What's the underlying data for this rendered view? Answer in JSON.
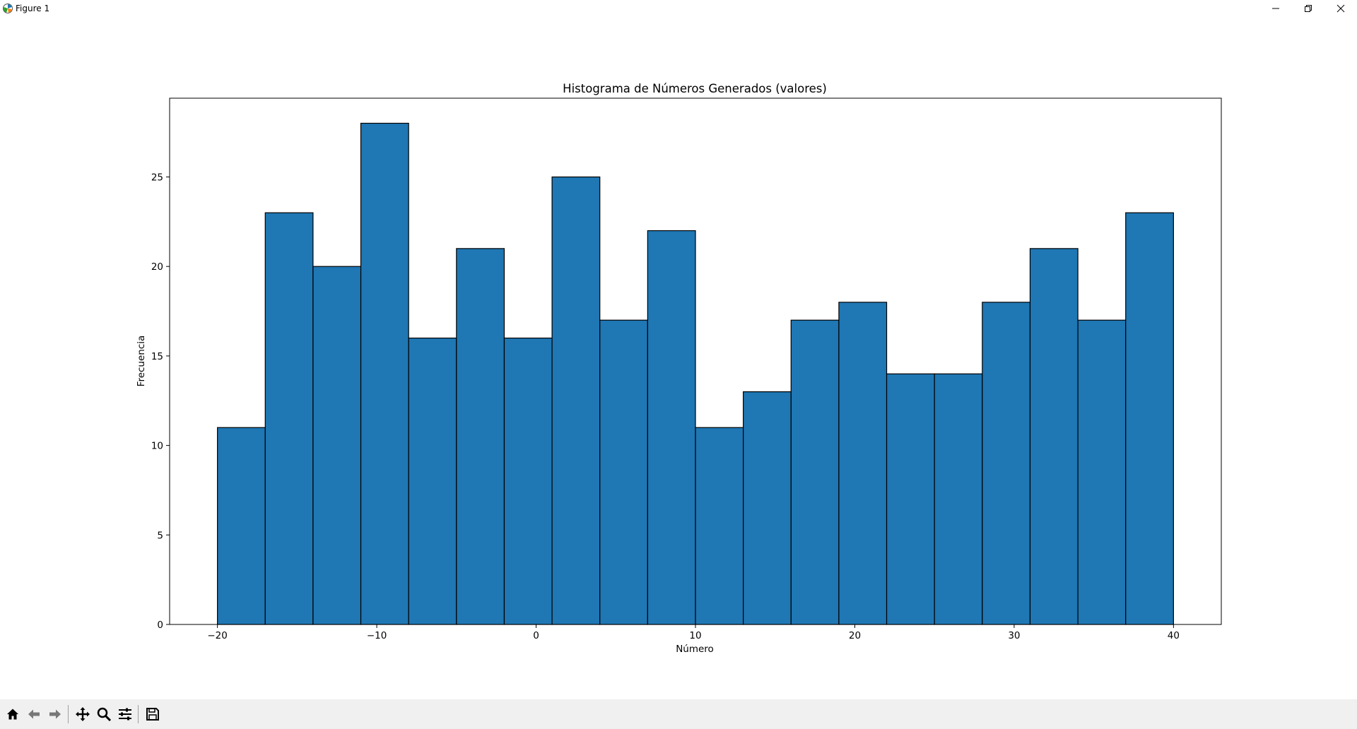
{
  "window": {
    "title": "Figure 1",
    "icons": [
      "matplotlib-icon",
      "minimize-icon",
      "restore-icon",
      "close-icon"
    ]
  },
  "toolbar": {
    "tools": [
      "home-icon",
      "back-icon",
      "forward-icon",
      "pan-icon",
      "zoom-icon",
      "configure-icon",
      "save-icon"
    ]
  },
  "chart_data": {
    "type": "bar",
    "title": "Histograma de Números Generados (valores)",
    "xlabel": "Número",
    "ylabel": "Frecuencia",
    "bin_edges": [
      -20,
      -17,
      -14,
      -11,
      -8,
      -5,
      -2,
      1,
      4,
      7,
      10,
      13,
      16,
      19,
      22,
      25,
      28,
      31,
      34,
      37,
      40
    ],
    "values": [
      11,
      23,
      20,
      28,
      16,
      21,
      16,
      25,
      17,
      22,
      11,
      13,
      17,
      18,
      14,
      14,
      18,
      21,
      17,
      23
    ],
    "xlim": [
      -23,
      43
    ],
    "ylim": [
      0,
      29.4
    ],
    "xticks": [
      -20,
      -10,
      0,
      10,
      20,
      30,
      40
    ],
    "xtick_labels": [
      "−20",
      "−10",
      "0",
      "10",
      "20",
      "30",
      "40"
    ],
    "yticks": [
      0,
      5,
      10,
      15,
      20,
      25
    ],
    "ytick_labels": [
      "0",
      "5",
      "10",
      "15",
      "20",
      "25"
    ],
    "bar_color": "#1f77b4",
    "edge_color": "#000000",
    "grid": false,
    "legend": "none"
  }
}
